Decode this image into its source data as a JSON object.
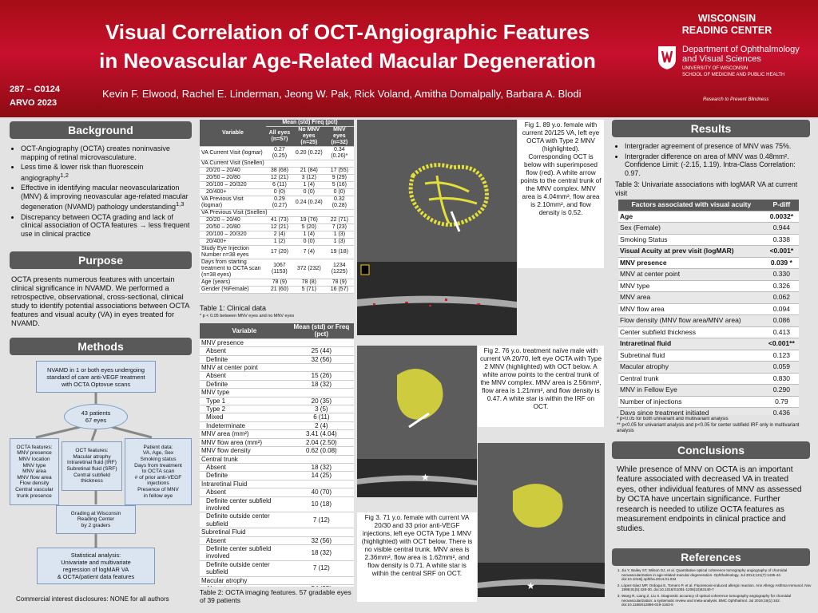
{
  "header": {
    "title_lines": [
      "Visual Correlation of OCT-Angiographic Features",
      "in Neovascular Age-Related Macular Degeneration"
    ],
    "poster_id": "287 – C0124",
    "conference": "ARVO 2023",
    "authors": "Kevin F. Elwood, Rachel E. Linderman, Jeong W. Pak, Rick Voland, Amitha Domalpally, Barbara A. Blodi",
    "logo": {
      "center_lines": [
        "WISCONSIN",
        "READING CENTER"
      ],
      "department_lines": [
        "Department of Ophthalmology",
        "and Visual Sciences"
      ],
      "university_lines": [
        "UNIVERSITY OF WISCONSIN",
        "SCHOOL OF MEDICINE AND PUBLIC HEALTH"
      ],
      "sponsor": "Research to Prevent Blindness"
    }
  },
  "background": {
    "heading": "Background",
    "bullets": [
      {
        "text": "OCT-Angiography (OCTA) creates noninvasive mapping of retinal microvasculature."
      },
      {
        "text": "Less time & lower risk than fluorescein angiography",
        "sup": "1,2"
      },
      {
        "text": "Effective in identifying macular neovascularization (MNV) & improving neovascular age-related macular degeneration (NVAMD) pathology understanding",
        "sup": "1,3"
      },
      {
        "text": "Discrepancy between OCTA grading and lack of clinical association of OCTA features → less frequent use in clinical practice"
      }
    ]
  },
  "purpose": {
    "heading": "Purpose",
    "text": "OCTA presents numerous features with uncertain clinical significance in NVAMD. We performed a retrospective, observational, cross-sectional, clinical study to identify potential associations between OCTA features and visual acuity (VA) in eyes treated for NVAMD."
  },
  "methods": {
    "heading": "Methods",
    "flowchart": [
      {
        "lines": [
          "NVAMD in 1 or both eyes undergoing",
          "standard of care anti-VEGF treatment",
          "with OCTA Optovue scans"
        ]
      },
      {
        "lines": [
          "43 patients",
          "67 eyes"
        ]
      },
      {
        "lines": [
          "OCTA features:",
          "MNV presence",
          "MNV location",
          "MNV type",
          "MNV area",
          "MNV flow area",
          "Flow density",
          "Central vascular",
          "trunk presence"
        ]
      },
      {
        "lines": [
          "OCT features:",
          "Macular atrophy",
          "Intraretinal fluid (IRF)",
          "Subretinal fluid (SRF)",
          "Central subfield",
          "thickness"
        ]
      },
      {
        "lines": [
          "Patient data:",
          "VA, Age, Sex",
          "Smoking status",
          "Days from treatment",
          "to OCTA scan",
          "# of prior anti-VEGF",
          "injections",
          "Presence of MNV",
          "in fellow eye"
        ]
      },
      {
        "lines": [
          "Grading at Wisconsin",
          "Reading Center",
          "by 2 graders"
        ]
      },
      {
        "lines": [
          "Statistical analysis:",
          "Univariate and multivariate",
          "regression of logMAR VA",
          "& OCTA/patient data features"
        ]
      }
    ],
    "disclosure": "Commercial interest disclosures: NONE for all authors"
  },
  "table1": {
    "group_header": "Mean (std) Freq (pct)",
    "columns": [
      "Variable",
      "All eyes (n=57)",
      "No MNV eyes (n=25)",
      "MNV eyes (n=32)"
    ],
    "body": [
      [
        "VA Current Visit (logmar)",
        "0.27 (0.25)",
        "0.20 (0.22)",
        "0.34 (0.26)*"
      ],
      {
        "group": "VA Current Visit (Snellen)",
        "rows": [
          [
            "20/20 – 20/40",
            "38 (68)",
            "21 (84)",
            "17 (55)"
          ],
          [
            "20/50 – 20/80",
            "12 (21)",
            "3 (12)",
            "9 (29)"
          ],
          [
            "20/100 – 20/320",
            "6 (11)",
            "1 (4)",
            "5 (16)"
          ],
          [
            "20/400+",
            "0 (0)",
            "0 (0)",
            "0 (0)"
          ]
        ]
      },
      [
        "VA Previous Visit (logmar)",
        "0.29 (0.27)",
        "0.24 (0.24)",
        "0.32 (0.28)"
      ],
      {
        "group": "VA Previous Visit (Snellen)",
        "rows": [
          [
            "20/20 – 20/40",
            "41 (73)",
            "19 (76)",
            "22 (71)"
          ],
          [
            "20/50 – 20/80",
            "12 (21)",
            "5 (20)",
            "7 (23)"
          ],
          [
            "20/100 – 20/320",
            "2 (4)",
            "1 (4)",
            "1 (3)"
          ],
          [
            "20/400+",
            "1 (2)",
            "0 (0)",
            "1 (3)"
          ]
        ]
      },
      [
        "Study Eye Injection Number n=38 eyes",
        "17 (20)",
        "7 (4)",
        "19 (18)"
      ],
      [
        "Days from starting treatment to OCTA scan (n=38 eyes)",
        "1067 (1153)",
        "372 (232)",
        "1234 (1225)"
      ],
      [
        "Age (years)",
        "78 (9)",
        "78 (8)",
        "78 (9)"
      ],
      [
        "Gender (%Female)",
        "21 (60)",
        "5 (71)",
        "16 (57)"
      ]
    ],
    "caption": "Table 1: Clinical data",
    "footnote": "* p < 0.05 between MNV eyes and no MNV eyes"
  },
  "table2": {
    "columns": [
      "Variable",
      "Mean (std) or Freq (pct)"
    ],
    "body": [
      {
        "group": "MNV presence",
        "rows": [
          [
            "Absent",
            "25 (44)"
          ],
          [
            "Definite",
            "32 (56)"
          ]
        ]
      },
      {
        "group": "MNV at center point",
        "rows": [
          [
            "Absent",
            "15 (26)"
          ],
          [
            "Definite",
            "18 (32)"
          ]
        ]
      },
      {
        "group": "MNV type",
        "rows": [
          [
            "Type 1",
            "20 (35)"
          ],
          [
            "Type 2",
            "3 (5)"
          ],
          [
            "Mixed",
            "6 (11)"
          ],
          [
            "Indeterminate",
            "2 (4)"
          ]
        ]
      },
      [
        "MNV area (mm²)",
        "3.41 (4.04)"
      ],
      [
        "MNV flow area (mm²)",
        "2.04 (2.50)"
      ],
      [
        "MNV flow density",
        "0.62 (0.08)"
      ],
      {
        "group": "Central trunk",
        "rows": [
          [
            "Absent",
            "18 (32)"
          ],
          [
            "Definite",
            "14 (25)"
          ]
        ]
      },
      {
        "group": "Intraretinal Fluid",
        "rows": [
          [
            "Absent",
            "40 (70)"
          ],
          [
            "Definite center subfield involved",
            "10 (18)"
          ],
          [
            "Definite outside center subfield",
            "7 (12)"
          ]
        ]
      },
      {
        "group": "Subretinal Fluid",
        "rows": [
          [
            "Absent",
            "32 (56)"
          ],
          [
            "Definite center subfield involved",
            "18 (32)"
          ],
          [
            "Definite outside center subfield",
            "7 (12)"
          ]
        ]
      },
      {
        "group": "Macular atrophy",
        "rows": [
          [
            "Absent",
            "54 (95)"
          ],
          [
            "Definite within NVLC",
            "2 (4)"
          ],
          [
            "Definite outside & within NVLC",
            "1 (2)"
          ]
        ]
      }
    ],
    "caption": "Table 2: OCTA imaging features. 57 gradable eyes of 39 patients"
  },
  "figures": [
    {
      "caption": "Fig 1. 89 y.o. female with current 20/125 VA, left eye OCTA with Type 2 MNV (highlighted). Corresponding OCT is below with superimposed flow (red). A white arrow points to the central trunk of the MNV complex. MNV area is 4.04mm², flow area is 2.10mm², and flow density is 0.52."
    },
    {
      "caption": "Fig 2. 76 y.o. treatment naïve male with current VA 20/70, left eye OCTA with Type 2 MNV (highlighted) with OCT below. A white arrow points to the central trunk of the MNV complex. MNV area is 2.56mm², flow area is 1.21mm², and flow density is 0.47. A white star is within the IRF on OCT."
    },
    {
      "caption": "Fig 3. 71 y.o. female with current VA 20/30 and 33 prior anti-VEGF injections, left eye OCTA Type 1 MNV (highlighted) with OCT below. There is no visible central trunk. MNV area is 2.36mm², flow area is 1.62mm², and flow density is 0.71. A white star is within the central SRF on OCT."
    }
  ],
  "results": {
    "heading": "Results",
    "bullets": [
      "Intergrader agreement of presence of MNV was 75%.",
      "Intergrader difference on area of MNV was 0.48mm². Confidence Limit: (-2.15, 1.19). Intra-Class Correlation: 0.97."
    ]
  },
  "table3": {
    "caption": "Table 3: Univariate associations with logMAR VA at current visit",
    "columns": [
      "Factors associated with visual acuity",
      "P-diff"
    ],
    "body": [
      [
        "Age",
        "0.0032*"
      ],
      [
        "Sex (Female)",
        "0.944"
      ],
      [
        "Smoking Status",
        "0.338"
      ],
      [
        "Visual Acuity at prev visit (logMAR)",
        "<0.001*"
      ],
      [
        "MNV presence",
        "0.039 *"
      ],
      [
        "MNV at center point",
        "0.330"
      ],
      [
        "MNV type",
        "0.326"
      ],
      [
        "MNV area",
        "0.062"
      ],
      [
        "MNV flow area",
        "0.094"
      ],
      [
        "Flow density (MNV flow area/MNV area)",
        "0.086"
      ],
      [
        "Center subfield thickness",
        "0.413"
      ],
      [
        "Intraretinal fluid",
        "<0.001**"
      ],
      [
        "Subretinal fluid",
        "0.123"
      ],
      [
        "Macular atrophy",
        "0.059"
      ],
      [
        "Central trunk",
        "0.830"
      ],
      [
        "MNV in Fellow Eye",
        "0.290"
      ],
      [
        "Number of injections",
        "0.79"
      ],
      [
        "Days since treatment initiated",
        "0.436"
      ]
    ],
    "footnotes": [
      "* p<0.05 for both univariant and multivariant analysis",
      "** p<0.05 for univariant analysis and p<0.05 for center subfield IRF only in multivariant analysis"
    ]
  },
  "conclusions": {
    "heading": "Conclusions",
    "text": "While presence of MNV on OCTA is an important feature associated with decreased VA in treated eyes, other individual features of MNV as assessed by OCTA have uncertain significance. Further research is needed to utilize OCTA features as measurement endpoints in clinical practice and studies."
  },
  "references": {
    "heading": "References",
    "items": [
      "Jia Y, Bailey ST, Wilson DJ, et al. Quantitative optical coherence tomography angiography of choroidal neovascularization in age-related macular degeneration. Ophthalmology. Jul 2014;121(7):1435-44. doi:10.1016/j.ophtha.2014.01.034",
      "López-Sáez MP, Ordoqui E, Tornero P, et al. Fluorescein-induced allergic reaction. Ann Allergy Asthma Immunol. Nov 1998;81(5):428-30. doi:10.1016/S1081-1206(10)63140-7",
      "Wang R, Liang Z, Liu X. Diagnostic accuracy of optical coherence tomography angiography for choroidal neovascularization: a systematic review and meta-analysis. BMC Ophthalmol. Jul 2019;19(1):162. doi:10.1186/s12886-019-1163-5"
    ]
  }
}
